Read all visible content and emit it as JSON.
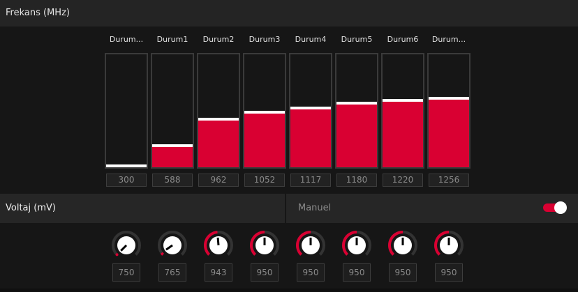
{
  "frequency": {
    "title": "Frekans (MHz)",
    "scale": {
      "min": 300,
      "max": 1850
    },
    "states": [
      {
        "label": "Durum...",
        "value": 300
      },
      {
        "label": "Durum1",
        "value": 588
      },
      {
        "label": "Durum2",
        "value": 962
      },
      {
        "label": "Durum3",
        "value": 1052
      },
      {
        "label": "Durum4",
        "value": 1117
      },
      {
        "label": "Durum5",
        "value": 1180
      },
      {
        "label": "Durum6",
        "value": 1220
      },
      {
        "label": "Durum...",
        "value": 1256
      }
    ]
  },
  "voltage": {
    "title": "Voltaj (mV)",
    "mode_label": "Manuel",
    "manual_enabled": true,
    "scale": {
      "min": 750,
      "max": 1150
    },
    "values": [
      750,
      765,
      943,
      950,
      950,
      950,
      950,
      950
    ]
  },
  "colors": {
    "accent": "#d90032",
    "background": "#161616",
    "header": "#242424"
  }
}
